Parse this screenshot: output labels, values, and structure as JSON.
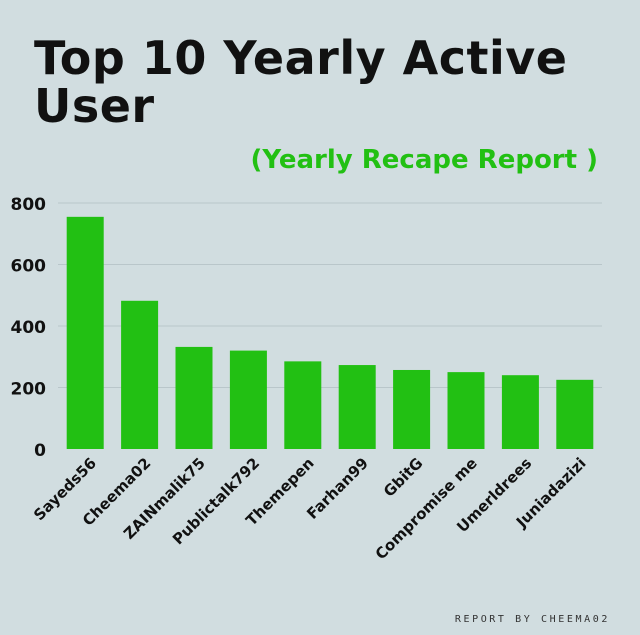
{
  "header": {
    "title": "Top 10 Yearly Active User",
    "subtitle": "(Yearly Recape Report )"
  },
  "footer": {
    "credit": "REPORT BY CHEEMA02"
  },
  "chart_data": {
    "type": "bar",
    "title": "Top 10 Yearly Active User",
    "subtitle": "(Yearly Recape Report )",
    "categories": [
      "Sayeds56",
      "Cheema02",
      "ZAINmalik75",
      "Publictalk792",
      "Themepen",
      "Farhan99",
      "GbitG",
      "Compromise me",
      "Umerldrees",
      "Juniadazizi"
    ],
    "values": [
      755,
      482,
      332,
      320,
      285,
      273,
      257,
      250,
      240,
      225
    ],
    "xlabel": "",
    "ylabel": "",
    "ylim": [
      0,
      800
    ],
    "yticks": [
      0,
      200,
      400,
      600,
      800
    ],
    "grid": true,
    "bar_color": "#22c013",
    "grid_color": "#b9c6ca"
  }
}
